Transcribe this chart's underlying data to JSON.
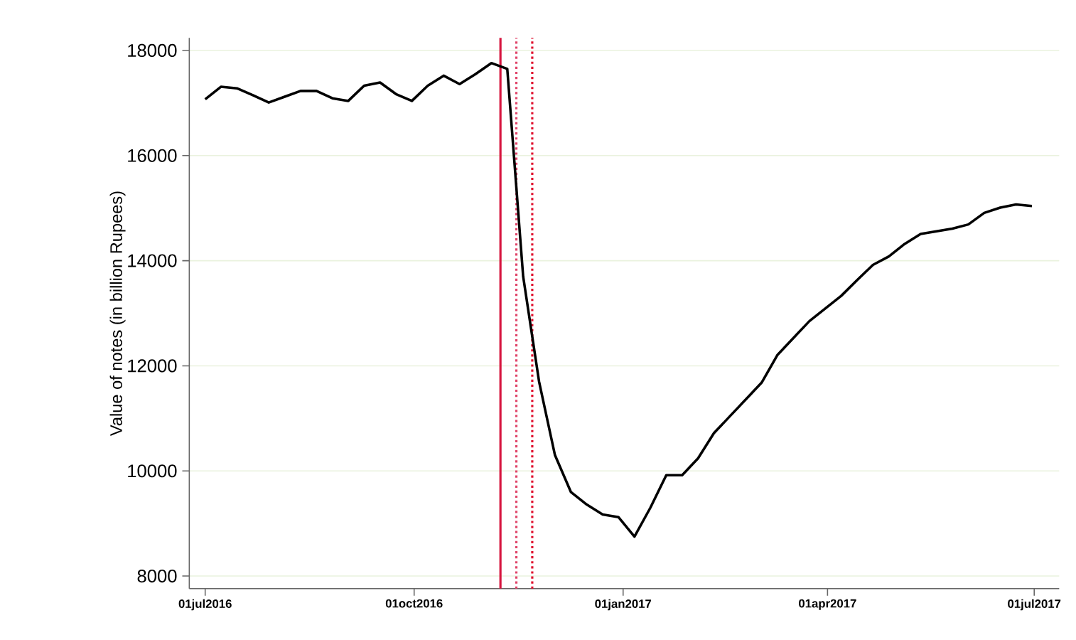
{
  "chart_data": {
    "type": "line",
    "ylabel": "Value of notes (in billion Rupees)",
    "x": [
      "2016-07-01",
      "2016-07-08",
      "2016-07-15",
      "2016-07-22",
      "2016-07-29",
      "2016-08-05",
      "2016-08-12",
      "2016-08-19",
      "2016-08-26",
      "2016-09-02",
      "2016-09-09",
      "2016-09-16",
      "2016-09-23",
      "2016-09-30",
      "2016-10-07",
      "2016-10-14",
      "2016-10-21",
      "2016-10-28",
      "2016-11-04",
      "2016-11-11",
      "2016-11-18",
      "2016-11-25",
      "2016-12-02",
      "2016-12-09",
      "2016-12-16",
      "2016-12-23",
      "2016-12-30",
      "2017-01-06",
      "2017-01-13",
      "2017-01-20",
      "2017-01-27",
      "2017-02-03",
      "2017-02-10",
      "2017-02-17",
      "2017-02-24",
      "2017-03-03",
      "2017-03-10",
      "2017-03-17",
      "2017-03-24",
      "2017-03-31",
      "2017-04-07",
      "2017-04-14",
      "2017-04-21",
      "2017-04-28",
      "2017-05-05",
      "2017-05-12",
      "2017-05-19",
      "2017-05-26",
      "2017-06-02",
      "2017-06-09",
      "2017-06-16",
      "2017-06-23",
      "2017-06-30"
    ],
    "series": [
      {
        "color": "#000000",
        "values": [
          17070,
          17310,
          17280,
          17150,
          17010,
          17120,
          17230,
          17230,
          17090,
          17040,
          17330,
          17390,
          17170,
          17040,
          17330,
          17520,
          17360,
          17550,
          17760,
          17650,
          13700,
          11700,
          10300,
          9600,
          9360,
          9170,
          9120,
          8750,
          9300,
          9920,
          9920,
          10240,
          10720,
          11040,
          11360,
          11680,
          12210,
          12530,
          12850,
          13090,
          13330,
          13630,
          13920,
          14080,
          14320,
          14510,
          14560,
          14610,
          14690,
          14910,
          15010,
          15070,
          15040
        ]
      }
    ],
    "xlim": [
      "2016-06-24",
      "2017-07-12"
    ],
    "xticks": [
      {
        "value": "2016-07-01",
        "label": "01jul2016"
      },
      {
        "value": "2016-10-01",
        "label": "01oct2016"
      },
      {
        "value": "2017-01-01",
        "label": "01jan2017"
      },
      {
        "value": "2017-04-01",
        "label": "01apr2017"
      },
      {
        "value": "2017-07-01",
        "label": "01jul2017"
      }
    ],
    "ylim": [
      7760,
      18240
    ],
    "yticks": [
      8000,
      10000,
      12000,
      14000,
      16000,
      18000
    ],
    "grid": "y",
    "ref_lines": [
      {
        "axis": "x",
        "value": "2016-11-08",
        "color": "#d6163f",
        "line_style": "solid"
      },
      {
        "axis": "x",
        "value": "2016-11-15",
        "color": "#e0456a",
        "line_style": "dotted"
      },
      {
        "axis": "x",
        "value": "2016-11-22",
        "color": "#e0102e",
        "line_style": "dotted"
      }
    ]
  }
}
